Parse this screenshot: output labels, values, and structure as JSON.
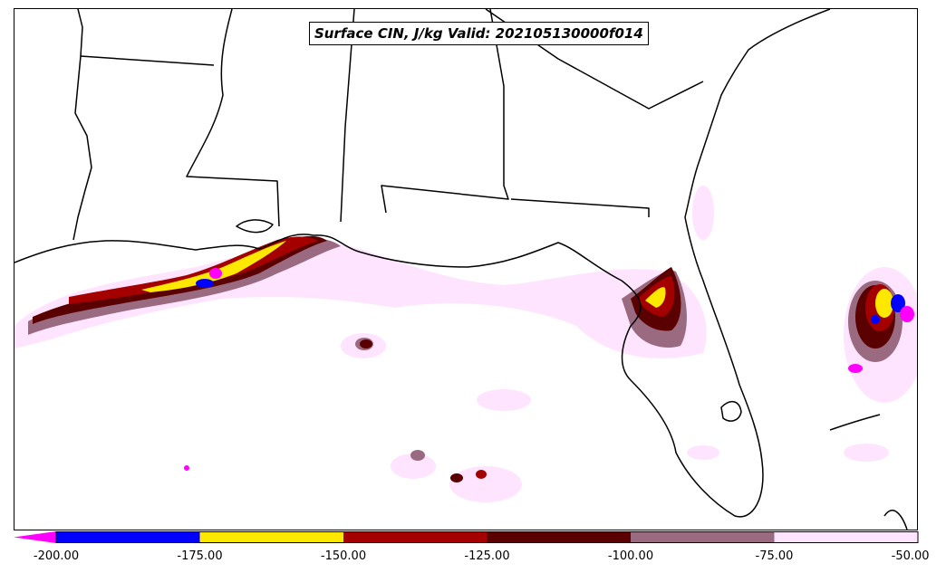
{
  "title": "Surface CIN, J/kg Valid: 202105130000f014",
  "colorbar": {
    "extend_color": "#ff00ff",
    "bins": [
      {
        "from": -200,
        "to": -175,
        "color": "#0000ff"
      },
      {
        "from": -175,
        "to": -150,
        "color": "#ffe800"
      },
      {
        "from": -150,
        "to": -125,
        "color": "#a50000"
      },
      {
        "from": -125,
        "to": -100,
        "color": "#5a0000"
      },
      {
        "from": -100,
        "to": -75,
        "color": "#9a6a80"
      },
      {
        "from": -75,
        "to": -50,
        "color": "#ffe4ff"
      }
    ],
    "tick_labels": [
      "-200.00",
      "-175.00",
      "-150.00",
      "-125.00",
      "-100.00",
      "-75.00",
      "-50.00"
    ]
  },
  "colors": {
    "boundary": "#000000",
    "lightest": "#ffe4ff",
    "light_mauve": "#9a6a80",
    "dark_red": "#5a0000",
    "red": "#a50000",
    "yellow": "#ffe800",
    "blue": "#0000ff",
    "magenta": "#ff00ff"
  }
}
